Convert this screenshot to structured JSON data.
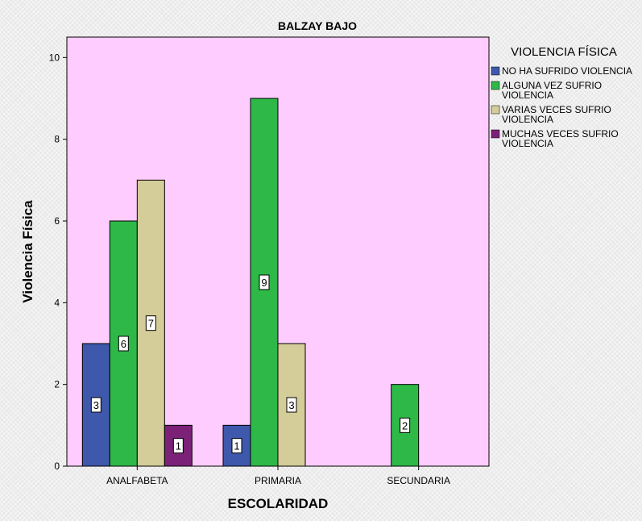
{
  "chart_data": {
    "type": "bar",
    "title": "BALZAY BAJO",
    "xlabel": "ESCOLARIDAD",
    "ylabel": "Violencia Física",
    "ylim": [
      0,
      10.5
    ],
    "yticks": [
      "0",
      "2",
      "4",
      "6",
      "8",
      "10"
    ],
    "categories": [
      "ANALFABETA",
      "PRIMARIA",
      "SECUNDARIA"
    ],
    "legend_title": "VIOLENCIA FÍSICA",
    "legend_position": "right",
    "plot_background": "#ffccff",
    "series": [
      {
        "name": "NO HA SUFRIDO VIOLENCIA",
        "legend_lines": [
          "NO HA SUFRIDO VIOLENCIA"
        ],
        "color": "#3e58ac",
        "values": [
          3,
          1,
          null
        ]
      },
      {
        "name": "ALGUNA VEZ SUFRIO VIOLENCIA",
        "legend_lines": [
          "ALGUNA VEZ SUFRIO",
          "VIOLENCIA"
        ],
        "color": "#2eb848",
        "values": [
          6,
          9,
          2
        ]
      },
      {
        "name": "VARIAS VECES SUFRIO VIOLENCIA",
        "legend_lines": [
          "VARIAS VECES SUFRIO",
          "VIOLENCIA"
        ],
        "color": "#d4cc99",
        "values": [
          7,
          3,
          null
        ]
      },
      {
        "name": "MUCHAS VECES SUFRIO VIOLENCIA",
        "legend_lines": [
          "MUCHAS VECES SUFRIO",
          "VIOLENCIA"
        ],
        "color": "#7b2178",
        "values": [
          1,
          null,
          null
        ]
      }
    ]
  }
}
